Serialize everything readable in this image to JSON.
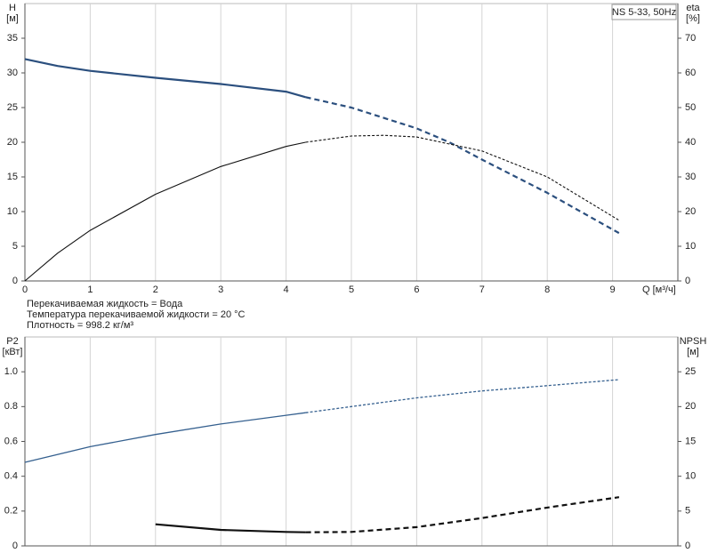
{
  "chart_data": [
    {
      "type": "line",
      "title": "NS 5-33, 50Hz",
      "ylabel": "H",
      "yunit": "[м]",
      "y2label": "eta",
      "y2unit": "[%]",
      "xlabel": "Q [м³/ч]",
      "xlim": [
        0,
        10
      ],
      "xticks": [
        0,
        1,
        2,
        3,
        4,
        5,
        6,
        7,
        8,
        9
      ],
      "xtick_labels": true,
      "ylim": [
        0,
        40
      ],
      "yticks": [
        0,
        5,
        10,
        15,
        20,
        25,
        30,
        35
      ],
      "y2lim": [
        0,
        80
      ],
      "y2ticks": [
        0,
        10,
        20,
        30,
        40,
        50,
        60,
        70
      ],
      "grid": true,
      "series": [
        {
          "color": "#2b4f7e",
          "width": 2.2,
          "dashed": false,
          "x": [
            0,
            0.5,
            1,
            2,
            3,
            4,
            4.3
          ],
          "values": [
            32,
            31,
            30.3,
            29.3,
            28.4,
            27.3,
            26.5
          ]
        },
        {
          "color": "#2b4f7e",
          "width": 2.2,
          "dashed": true,
          "x": [
            4.3,
            5,
            6,
            6.5,
            7,
            8,
            9.1
          ],
          "values": [
            26.5,
            25,
            22,
            20,
            17.5,
            12.7,
            6.9
          ]
        },
        {
          "color": "#111111",
          "width": 1.1,
          "dashed": false,
          "axis": "y2",
          "x": [
            0,
            0.5,
            1,
            2,
            3,
            4,
            4.3
          ],
          "values": [
            0,
            8,
            14.6,
            25,
            33,
            38.8,
            40
          ]
        },
        {
          "color": "#111111",
          "width": 1.1,
          "dashed": true,
          "axis": "y2",
          "x": [
            4.3,
            5,
            5.5,
            6,
            7,
            8,
            9.1
          ],
          "values": [
            40,
            41.8,
            42,
            41.5,
            37.5,
            30,
            17.5
          ]
        }
      ]
    },
    {
      "type": "line",
      "ylabel": "P2",
      "yunit": "[кВт]",
      "y2label": "NPSH",
      "y2unit": "[м]",
      "xlim": [
        0,
        10
      ],
      "xticks": [
        0,
        1,
        2,
        3,
        4,
        5,
        6,
        7,
        8,
        9
      ],
      "xtick_labels": false,
      "ylim": [
        0,
        1.2
      ],
      "yticks": [
        0,
        0.2,
        0.4,
        0.6,
        0.8,
        {
          "value": 1,
          "label": "1.0"
        }
      ],
      "y2lim": [
        0,
        30
      ],
      "y2ticks": [
        0,
        5,
        10,
        15,
        20,
        25
      ],
      "grid": true,
      "series": [
        {
          "color": "#35608f",
          "width": 1.3,
          "dashed": false,
          "x": [
            0,
            1,
            2,
            3,
            4,
            4.3
          ],
          "values": [
            0.48,
            0.57,
            0.64,
            0.7,
            0.75,
            0.765
          ]
        },
        {
          "color": "#35608f",
          "width": 1.3,
          "dashed": true,
          "x": [
            4.3,
            5,
            6,
            7,
            8,
            9.1
          ],
          "values": [
            0.765,
            0.8,
            0.85,
            0.89,
            0.92,
            0.955
          ]
        },
        {
          "color": "#111111",
          "width": 2.2,
          "dashed": false,
          "axis": "y2",
          "x": [
            2,
            3,
            4,
            4.3
          ],
          "values": [
            3.1,
            2.3,
            2,
            1.95
          ]
        },
        {
          "color": "#111111",
          "width": 2.2,
          "dashed": true,
          "axis": "y2",
          "x": [
            4.3,
            5,
            6,
            7,
            8,
            9.1
          ],
          "values": [
            1.95,
            2,
            2.7,
            4,
            5.5,
            7
          ]
        }
      ]
    }
  ],
  "notes": [
    "Перекачиваемая жидкость = Вода",
    "Температура перекачиваемой жидкости = 20 °C",
    "Плотность = 998.2 кг/м³"
  ]
}
